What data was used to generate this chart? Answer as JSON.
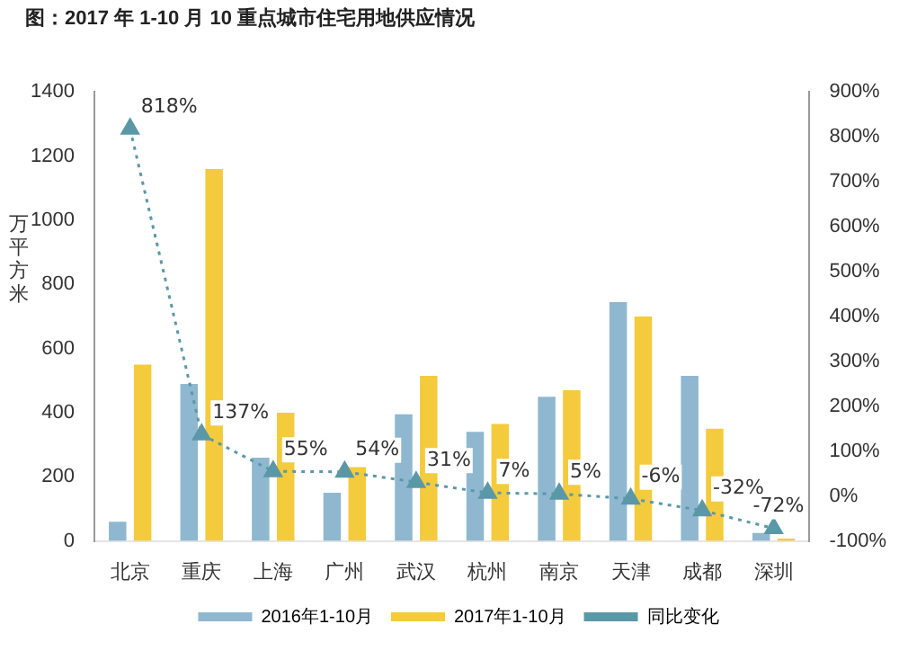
{
  "chart_data": {
    "type": "bar",
    "title": "图：2017 年 1-10 月 10 重点城市住宅用地供应情况",
    "ylabel": "万平方米",
    "categories": [
      "北京",
      "重庆",
      "上海",
      "广州",
      "武汉",
      "杭州",
      "南京",
      "天津",
      "成都",
      "深圳"
    ],
    "series": [
      {
        "name": "2016年1-10月",
        "color": "#8fb8d0",
        "values": [
          60,
          490,
          260,
          150,
          395,
          340,
          450,
          745,
          515,
          25
        ]
      },
      {
        "name": "2017年1-10月",
        "color": "#f4cb3c",
        "values": [
          550,
          1160,
          400,
          230,
          515,
          365,
          470,
          700,
          350,
          7
        ]
      },
      {
        "name": "同比变化",
        "type": "line",
        "axis": "y2",
        "color": "#5a98a8",
        "marker": "triangle",
        "line_style": "dotted",
        "values": [
          818,
          137,
          55,
          54,
          31,
          7,
          5,
          -6,
          -32,
          -72
        ],
        "value_labels": [
          "818%",
          "137%",
          "55%",
          "54%",
          "31%",
          "7%",
          "5%",
          "-6%",
          "-32%",
          "-72%"
        ]
      }
    ],
    "ylim": [
      0,
      1400
    ],
    "yticks": [
      0,
      200,
      400,
      600,
      800,
      1000,
      1200,
      1400
    ],
    "y2lim": [
      -100,
      900
    ],
    "y2ticks": [
      {
        "value": -100,
        "label": "-100%"
      },
      {
        "value": 0,
        "label": "0%"
      },
      {
        "value": 100,
        "label": "100%"
      },
      {
        "value": 200,
        "label": "200%"
      },
      {
        "value": 300,
        "label": "300%"
      },
      {
        "value": 400,
        "label": "400%"
      },
      {
        "value": 500,
        "label": "500%"
      },
      {
        "value": 600,
        "label": "600%"
      },
      {
        "value": 700,
        "label": "700%"
      },
      {
        "value": 800,
        "label": "800%"
      },
      {
        "value": 900,
        "label": "900%"
      }
    ],
    "grid": false,
    "legend": "bottom"
  }
}
